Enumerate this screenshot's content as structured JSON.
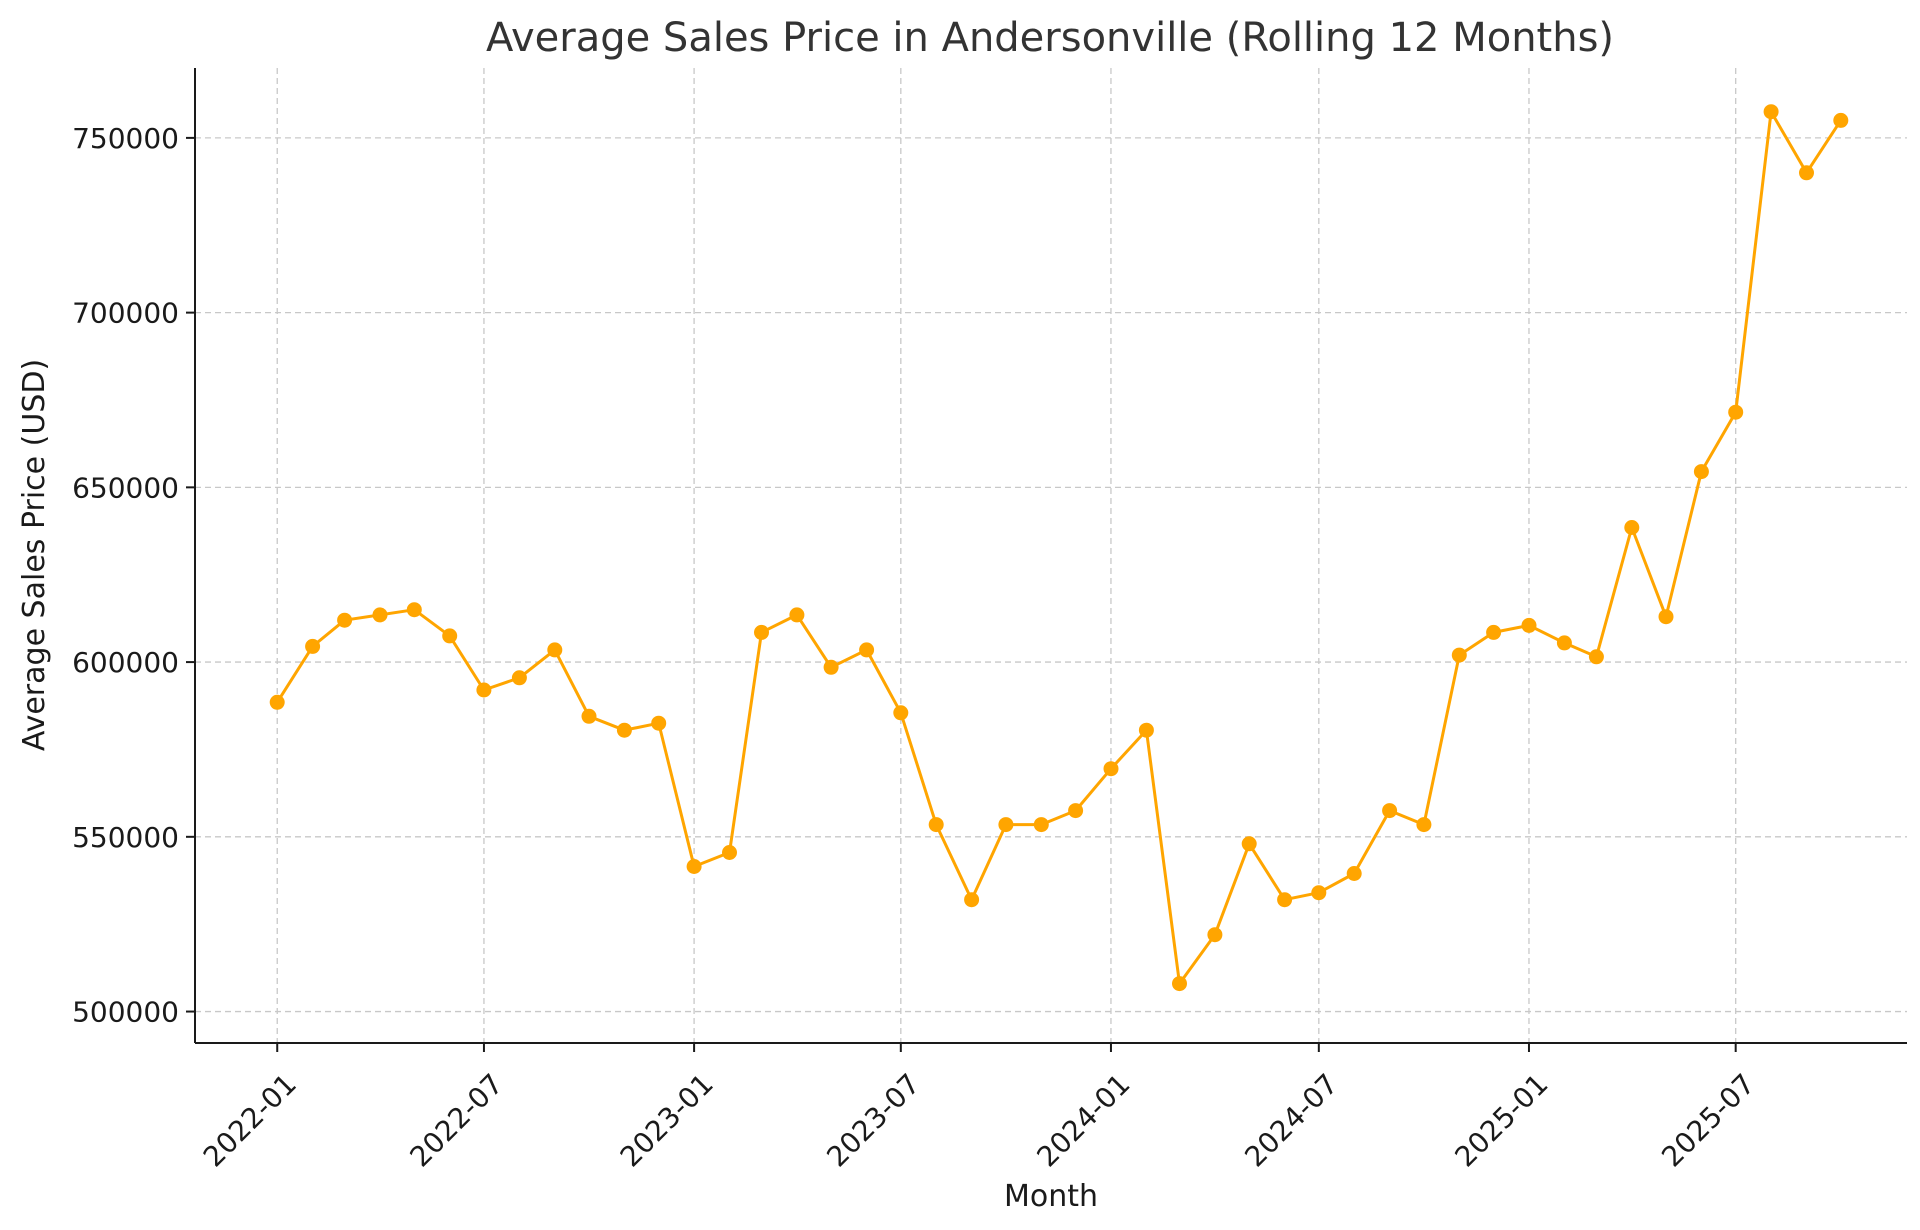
{
  "chart_data": {
    "type": "line",
    "title": "Average Sales Price in Andersonville (Rolling 12 Months)",
    "xlabel": "Month",
    "ylabel": "Average Sales Price (USD)",
    "ylim": [
      491000,
      770000
    ],
    "xlim": [
      "2021-10-21",
      "2025-11-28"
    ],
    "grid": true,
    "line_color": "#FFA500",
    "x_ticks": [
      "2022-01",
      "2022-07",
      "2023-01",
      "2023-07",
      "2024-01",
      "2024-07",
      "2025-01",
      "2025-07"
    ],
    "y_ticks": [
      500000,
      550000,
      600000,
      650000,
      700000,
      750000
    ],
    "x": [
      "2022-01",
      "2022-02",
      "2022-03",
      "2022-04",
      "2022-05",
      "2022-06",
      "2022-07",
      "2022-08",
      "2022-09",
      "2022-10",
      "2022-11",
      "2022-12",
      "2023-01",
      "2023-02",
      "2023-03",
      "2023-04",
      "2023-05",
      "2023-06",
      "2023-07",
      "2023-08",
      "2023-09",
      "2023-10",
      "2023-11",
      "2023-12",
      "2024-01",
      "2024-02",
      "2024-03",
      "2024-04",
      "2024-05",
      "2024-06",
      "2024-07",
      "2024-08",
      "2024-09",
      "2024-10",
      "2024-11",
      "2024-12",
      "2025-01",
      "2025-02",
      "2025-03",
      "2025-04",
      "2025-05",
      "2025-06",
      "2025-07",
      "2025-08",
      "2025-09",
      "2025-10"
    ],
    "values": [
      588500,
      604500,
      612000,
      613500,
      615000,
      607500,
      592000,
      595500,
      603500,
      584500,
      580500,
      582500,
      541500,
      545500,
      608500,
      613500,
      598500,
      603500,
      585500,
      553500,
      532000,
      553500,
      553500,
      557500,
      569500,
      580500,
      508000,
      522000,
      548000,
      532000,
      534000,
      539500,
      557500,
      553500,
      602000,
      608500,
      610500,
      605500,
      601500,
      638500,
      613000,
      654500,
      671500,
      757500,
      740000,
      755000
    ]
  }
}
